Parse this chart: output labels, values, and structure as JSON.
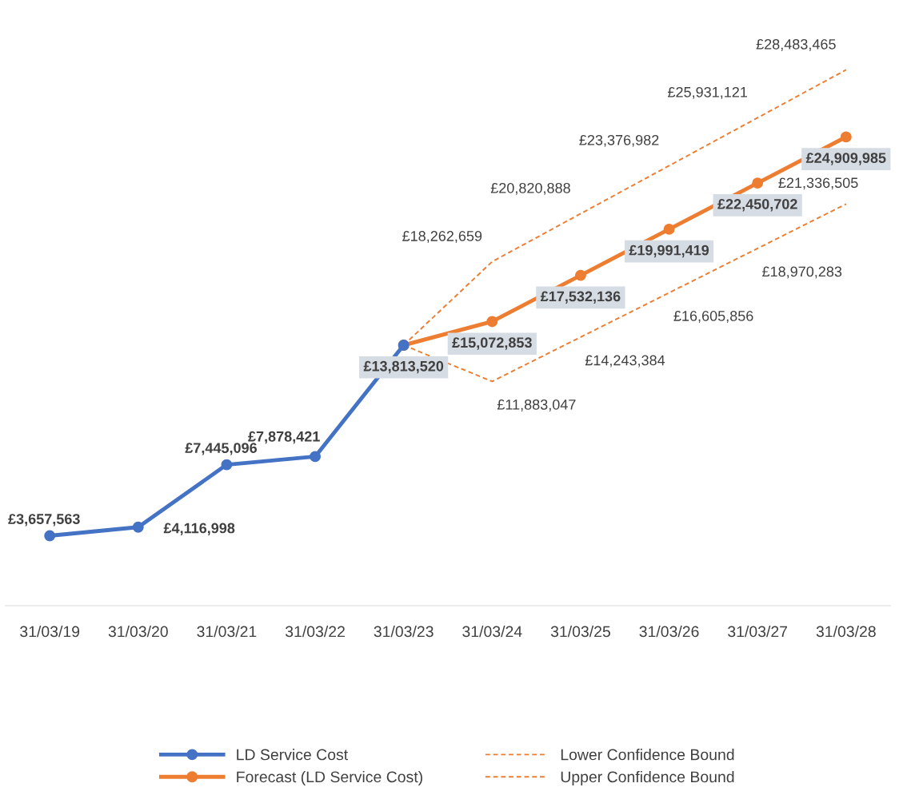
{
  "chart_data": {
    "type": "line",
    "categories": [
      "31/03/19",
      "31/03/20",
      "31/03/21",
      "31/03/22",
      "31/03/23",
      "31/03/24",
      "31/03/25",
      "31/03/26",
      "31/03/27",
      "31/03/28"
    ],
    "series": [
      {
        "name": "LD Service Cost",
        "color": "#4472c4",
        "marker": "circle",
        "line_style": "solid",
        "values": [
          3657563,
          4116998,
          7445096,
          7878421,
          13813520,
          null,
          null,
          null,
          null,
          null
        ],
        "value_labels": [
          "£3,657,563",
          "£4,116,998",
          "£7,445,096",
          "£7,878,421",
          null,
          null,
          null,
          null,
          null,
          null
        ]
      },
      {
        "name": "Forecast (LD Service Cost)",
        "color": "#ed7d31",
        "marker": "circle",
        "line_style": "solid",
        "values": [
          null,
          null,
          null,
          null,
          13813520,
          15072853,
          17532136,
          19991419,
          22450702,
          24909985
        ],
        "value_labels": [
          null,
          null,
          null,
          null,
          "£13,813,520",
          "£15,072,853",
          "£17,532,136",
          "£19,991,419",
          "£22,450,702",
          "£24,909,985"
        ]
      },
      {
        "name": "Lower Confidence Bound",
        "color": "#ed7d31",
        "marker": "none",
        "line_style": "dashed",
        "values": [
          null,
          null,
          null,
          null,
          13813520,
          11883047,
          14243384,
          16605856,
          18970283,
          21336505
        ],
        "value_labels": [
          null,
          null,
          null,
          null,
          null,
          "£11,883,047",
          "£14,243,384",
          "£16,605,856",
          "£18,970,283",
          "£21,336,505"
        ]
      },
      {
        "name": "Upper Confidence Bound",
        "color": "#ed7d31",
        "marker": "none",
        "line_style": "dashed",
        "values": [
          null,
          null,
          null,
          null,
          13813520,
          18262659,
          20820888,
          23376982,
          25931121,
          28483465
        ],
        "value_labels": [
          null,
          null,
          null,
          null,
          null,
          "£18,262,659",
          "£20,820,888",
          "£23,376,982",
          "£25,931,121",
          "£28,483,465"
        ]
      }
    ],
    "grid": false,
    "legend": "bottom"
  }
}
